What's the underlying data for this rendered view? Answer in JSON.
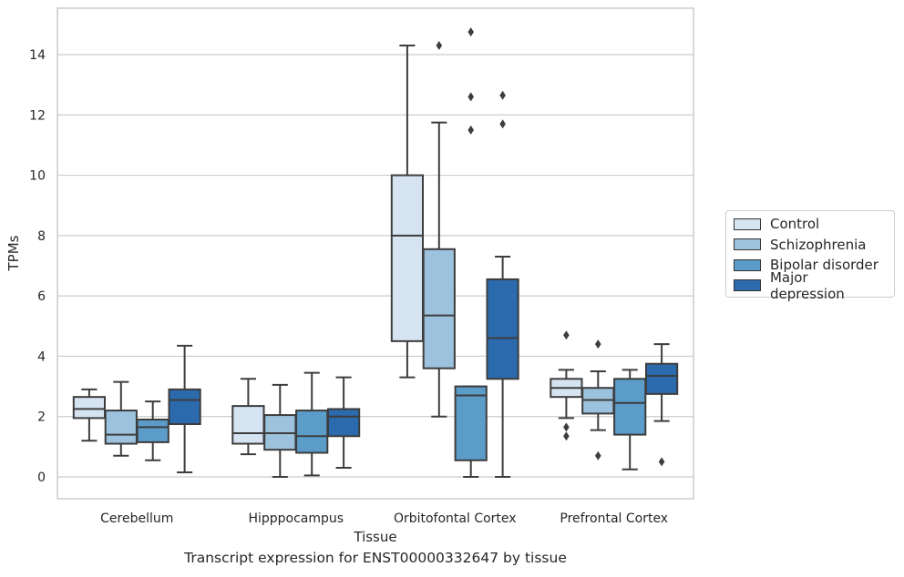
{
  "chart_data": {
    "type": "box",
    "title": "",
    "caption": "Transcript expression for ENST00000332647 by tissue",
    "xlabel": "Tissue",
    "ylabel": "TPMs",
    "ylim": [
      -0.7,
      15.5
    ],
    "yticks": [
      0,
      2,
      4,
      6,
      8,
      10,
      12,
      14
    ],
    "grid": "horizontal",
    "legend_position": "right",
    "categories": [
      "Cerebellum",
      "Hipppocampus",
      "Orbitofontal Cortex",
      "Prefrontal Cortex"
    ],
    "series": [
      {
        "name": "Control",
        "color": "#d6e4f2",
        "boxes": [
          {
            "q1": 1.95,
            "median": 2.25,
            "q3": 2.65,
            "whisker_low": 1.2,
            "whisker_high": 2.9,
            "outliers": []
          },
          {
            "q1": 1.1,
            "median": 1.45,
            "q3": 2.35,
            "whisker_low": 0.75,
            "whisker_high": 3.25,
            "outliers": []
          },
          {
            "q1": 4.5,
            "median": 8.0,
            "q3": 10.0,
            "whisker_low": 3.3,
            "whisker_high": 14.3,
            "outliers": []
          },
          {
            "q1": 2.65,
            "median": 2.95,
            "q3": 3.25,
            "whisker_low": 1.95,
            "whisker_high": 3.55,
            "outliers": [
              4.7,
              1.65,
              1.35
            ]
          }
        ]
      },
      {
        "name": "Schizophrenia",
        "color": "#9cc2dd",
        "boxes": [
          {
            "q1": 1.1,
            "median": 1.4,
            "q3": 2.2,
            "whisker_low": 0.7,
            "whisker_high": 3.15,
            "outliers": []
          },
          {
            "q1": 0.9,
            "median": 1.45,
            "q3": 2.05,
            "whisker_low": 0.0,
            "whisker_high": 3.05,
            "outliers": []
          },
          {
            "q1": 3.6,
            "median": 5.35,
            "q3": 7.55,
            "whisker_low": 2.0,
            "whisker_high": 11.75,
            "outliers": [
              14.3
            ]
          },
          {
            "q1": 2.1,
            "median": 2.55,
            "q3": 2.95,
            "whisker_low": 1.55,
            "whisker_high": 3.5,
            "outliers": [
              4.4,
              0.7
            ]
          }
        ]
      },
      {
        "name": "Bipolar disorder",
        "color": "#5b9cc8",
        "boxes": [
          {
            "q1": 1.15,
            "median": 1.65,
            "q3": 1.9,
            "whisker_low": 0.55,
            "whisker_high": 2.5,
            "outliers": []
          },
          {
            "q1": 0.8,
            "median": 1.35,
            "q3": 2.2,
            "whisker_low": 0.05,
            "whisker_high": 3.45,
            "outliers": []
          },
          {
            "q1": 0.55,
            "median": 2.7,
            "q3": 3.0,
            "whisker_low": 0.0,
            "whisker_high": 3.0,
            "outliers": [
              14.75,
              12.6,
              11.5
            ]
          },
          {
            "q1": 1.4,
            "median": 2.45,
            "q3": 3.25,
            "whisker_low": 0.25,
            "whisker_high": 3.55,
            "outliers": []
          }
        ]
      },
      {
        "name": "Major depression",
        "color": "#2a6aad",
        "boxes": [
          {
            "q1": 1.75,
            "median": 2.55,
            "q3": 2.9,
            "whisker_low": 0.15,
            "whisker_high": 4.35,
            "outliers": []
          },
          {
            "q1": 1.35,
            "median": 2.0,
            "q3": 2.25,
            "whisker_low": 0.3,
            "whisker_high": 3.3,
            "outliers": []
          },
          {
            "q1": 3.25,
            "median": 4.6,
            "q3": 6.55,
            "whisker_low": 0.0,
            "whisker_high": 7.3,
            "outliers": [
              12.65,
              11.7
            ]
          },
          {
            "q1": 2.75,
            "median": 3.35,
            "q3": 3.75,
            "whisker_low": 1.85,
            "whisker_high": 4.4,
            "outliers": [
              0.5
            ]
          }
        ]
      }
    ]
  }
}
